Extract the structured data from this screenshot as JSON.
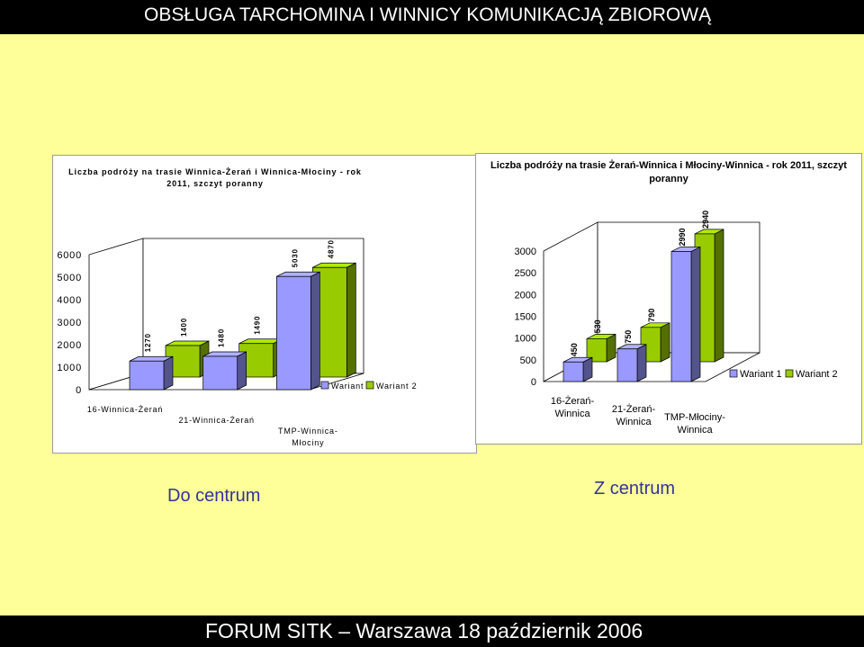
{
  "slide": {
    "title": "OBSŁUGA TARCHOMINA I WINNICY KOMUNIKACJĄ ZBIOROWĄ",
    "footer": "FORUM SITK – Warszawa 18 październik 2006",
    "caption_left": "Do centrum",
    "caption_right": "Z centrum"
  },
  "colors": {
    "background": "#ffff99",
    "bar_wariant1": "#9999ff",
    "bar_wariant2": "#99cc00",
    "caption": "#333399"
  },
  "chart_data": [
    {
      "type": "bar",
      "style": "3d-clustered-column",
      "title": "Liczba podróży na trasie Winnica-Żerań i Winnica-Młociny - rok 2011, szczyt poranny",
      "categories": [
        "16-Winnica-Żerań",
        "21-Winnica-Żerań",
        "TMP-Winnica-Młociny"
      ],
      "series": [
        {
          "name": "Wariant 1",
          "values": [
            1270,
            1480,
            5030
          ]
        },
        {
          "name": "Wariant 2",
          "values": [
            1400,
            1490,
            4870
          ]
        }
      ],
      "yticks": [
        "0",
        "1000",
        "2000",
        "3000",
        "4000",
        "5000",
        "6000"
      ],
      "ylim": [
        0,
        6000
      ],
      "legend_position": "bottom-right",
      "grid": false
    },
    {
      "type": "bar",
      "style": "3d-clustered-column",
      "title": "Liczba podróży na trasie Żerań-Winnica i Młociny-Winnica - rok 2011, szczyt poranny",
      "categories": [
        "16-Żerań-Winnica",
        "21-Żerań-Winnica",
        "TMP-Młociny-Winnica"
      ],
      "series": [
        {
          "name": "Wariant 1",
          "values": [
            450,
            750,
            2990
          ]
        },
        {
          "name": "Wariant 2",
          "values": [
            530,
            790,
            2940
          ]
        }
      ],
      "yticks": [
        "0",
        "500",
        "1000",
        "1500",
        "2000",
        "2500",
        "3000"
      ],
      "ylim": [
        0,
        3000
      ],
      "legend_position": "right",
      "grid": false
    }
  ]
}
